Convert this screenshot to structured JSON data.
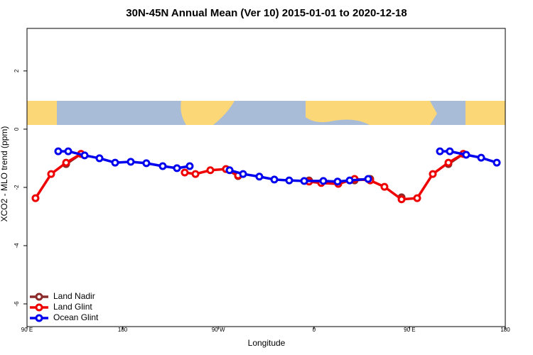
{
  "chart_data": {
    "type": "line",
    "title": "30N-45N Annual Mean (Ver 10)   2015-01-01 to 2020-12-18",
    "x_label": "Longitude",
    "y_label": "XCO2 - MLO trend (ppm)",
    "xlim": [
      90,
      540
    ],
    "xticks": [
      {
        "value": 90,
        "label": "90 E"
      },
      180,
      {
        "value": 270,
        "label": "90 W"
      },
      {
        "value": 360,
        "label": "0"
      },
      {
        "value": 450,
        "label": "90 E"
      },
      {
        "value": 540,
        "label": "180"
      }
    ],
    "ylim": [
      -6.78,
      3.46
    ],
    "yticks": [
      -6,
      -4,
      -2,
      0,
      2
    ],
    "legend": "bottom-left",
    "series": [
      {
        "name": "Land Nadir",
        "color": "#8b2a2a",
        "x": [
          126.8,
          140.8,
          null,
          277.2,
          288.6,
          null,
          355.4,
          null,
          398.2,
          412.9,
          null,
          442.4,
          null,
          486.5,
          500.5
        ],
        "values": [
          -1.2,
          -0.85,
          null,
          -1.37,
          -1.61,
          null,
          -1.76,
          null,
          -1.76,
          -1.71,
          null,
          -2.34,
          null,
          -1.2,
          -0.85
        ]
      },
      {
        "name": "Land Glint",
        "color": "#ee0000",
        "x": [
          98.0,
          112.7,
          126.8,
          140.8,
          null,
          238.4,
          248.5,
          262.5,
          277.2,
          288.6,
          null,
          355.4,
          366.8,
          382.9,
          398.2,
          412.9,
          426.3,
          442.4,
          457.1,
          471.8,
          486.5,
          500.5
        ],
        "values": [
          -2.37,
          -1.54,
          -1.15,
          -0.85,
          null,
          -1.49,
          -1.54,
          -1.41,
          -1.37,
          -1.59,
          null,
          -1.8,
          -1.85,
          -1.88,
          -1.71,
          -1.76,
          -1.98,
          -2.41,
          -2.37,
          -1.54,
          -1.15,
          -0.85
        ]
      },
      {
        "name": "Ocean Glint",
        "color": "#0000ee",
        "x": [
          119.4,
          128.8,
          144.2,
          158.2,
          172.9,
          187.6,
          202.3,
          217.7,
          231.1,
          243.1,
          null,
          280.6,
          293.3,
          308.6,
          322.7,
          336.7,
          350.8,
          368.8,
          382.2,
          393.6,
          411.0,
          null,
          478.5,
          487.8,
          503.2,
          517.3,
          532.0
        ],
        "values": [
          -0.76,
          -0.76,
          -0.9,
          -1.0,
          -1.15,
          -1.12,
          -1.17,
          -1.27,
          -1.34,
          -1.27,
          null,
          -1.41,
          -1.54,
          -1.63,
          -1.73,
          -1.76,
          -1.78,
          -1.78,
          -1.8,
          -1.76,
          -1.71,
          null,
          -0.76,
          -0.76,
          -0.88,
          -0.98,
          -1.15
        ]
      }
    ]
  }
}
